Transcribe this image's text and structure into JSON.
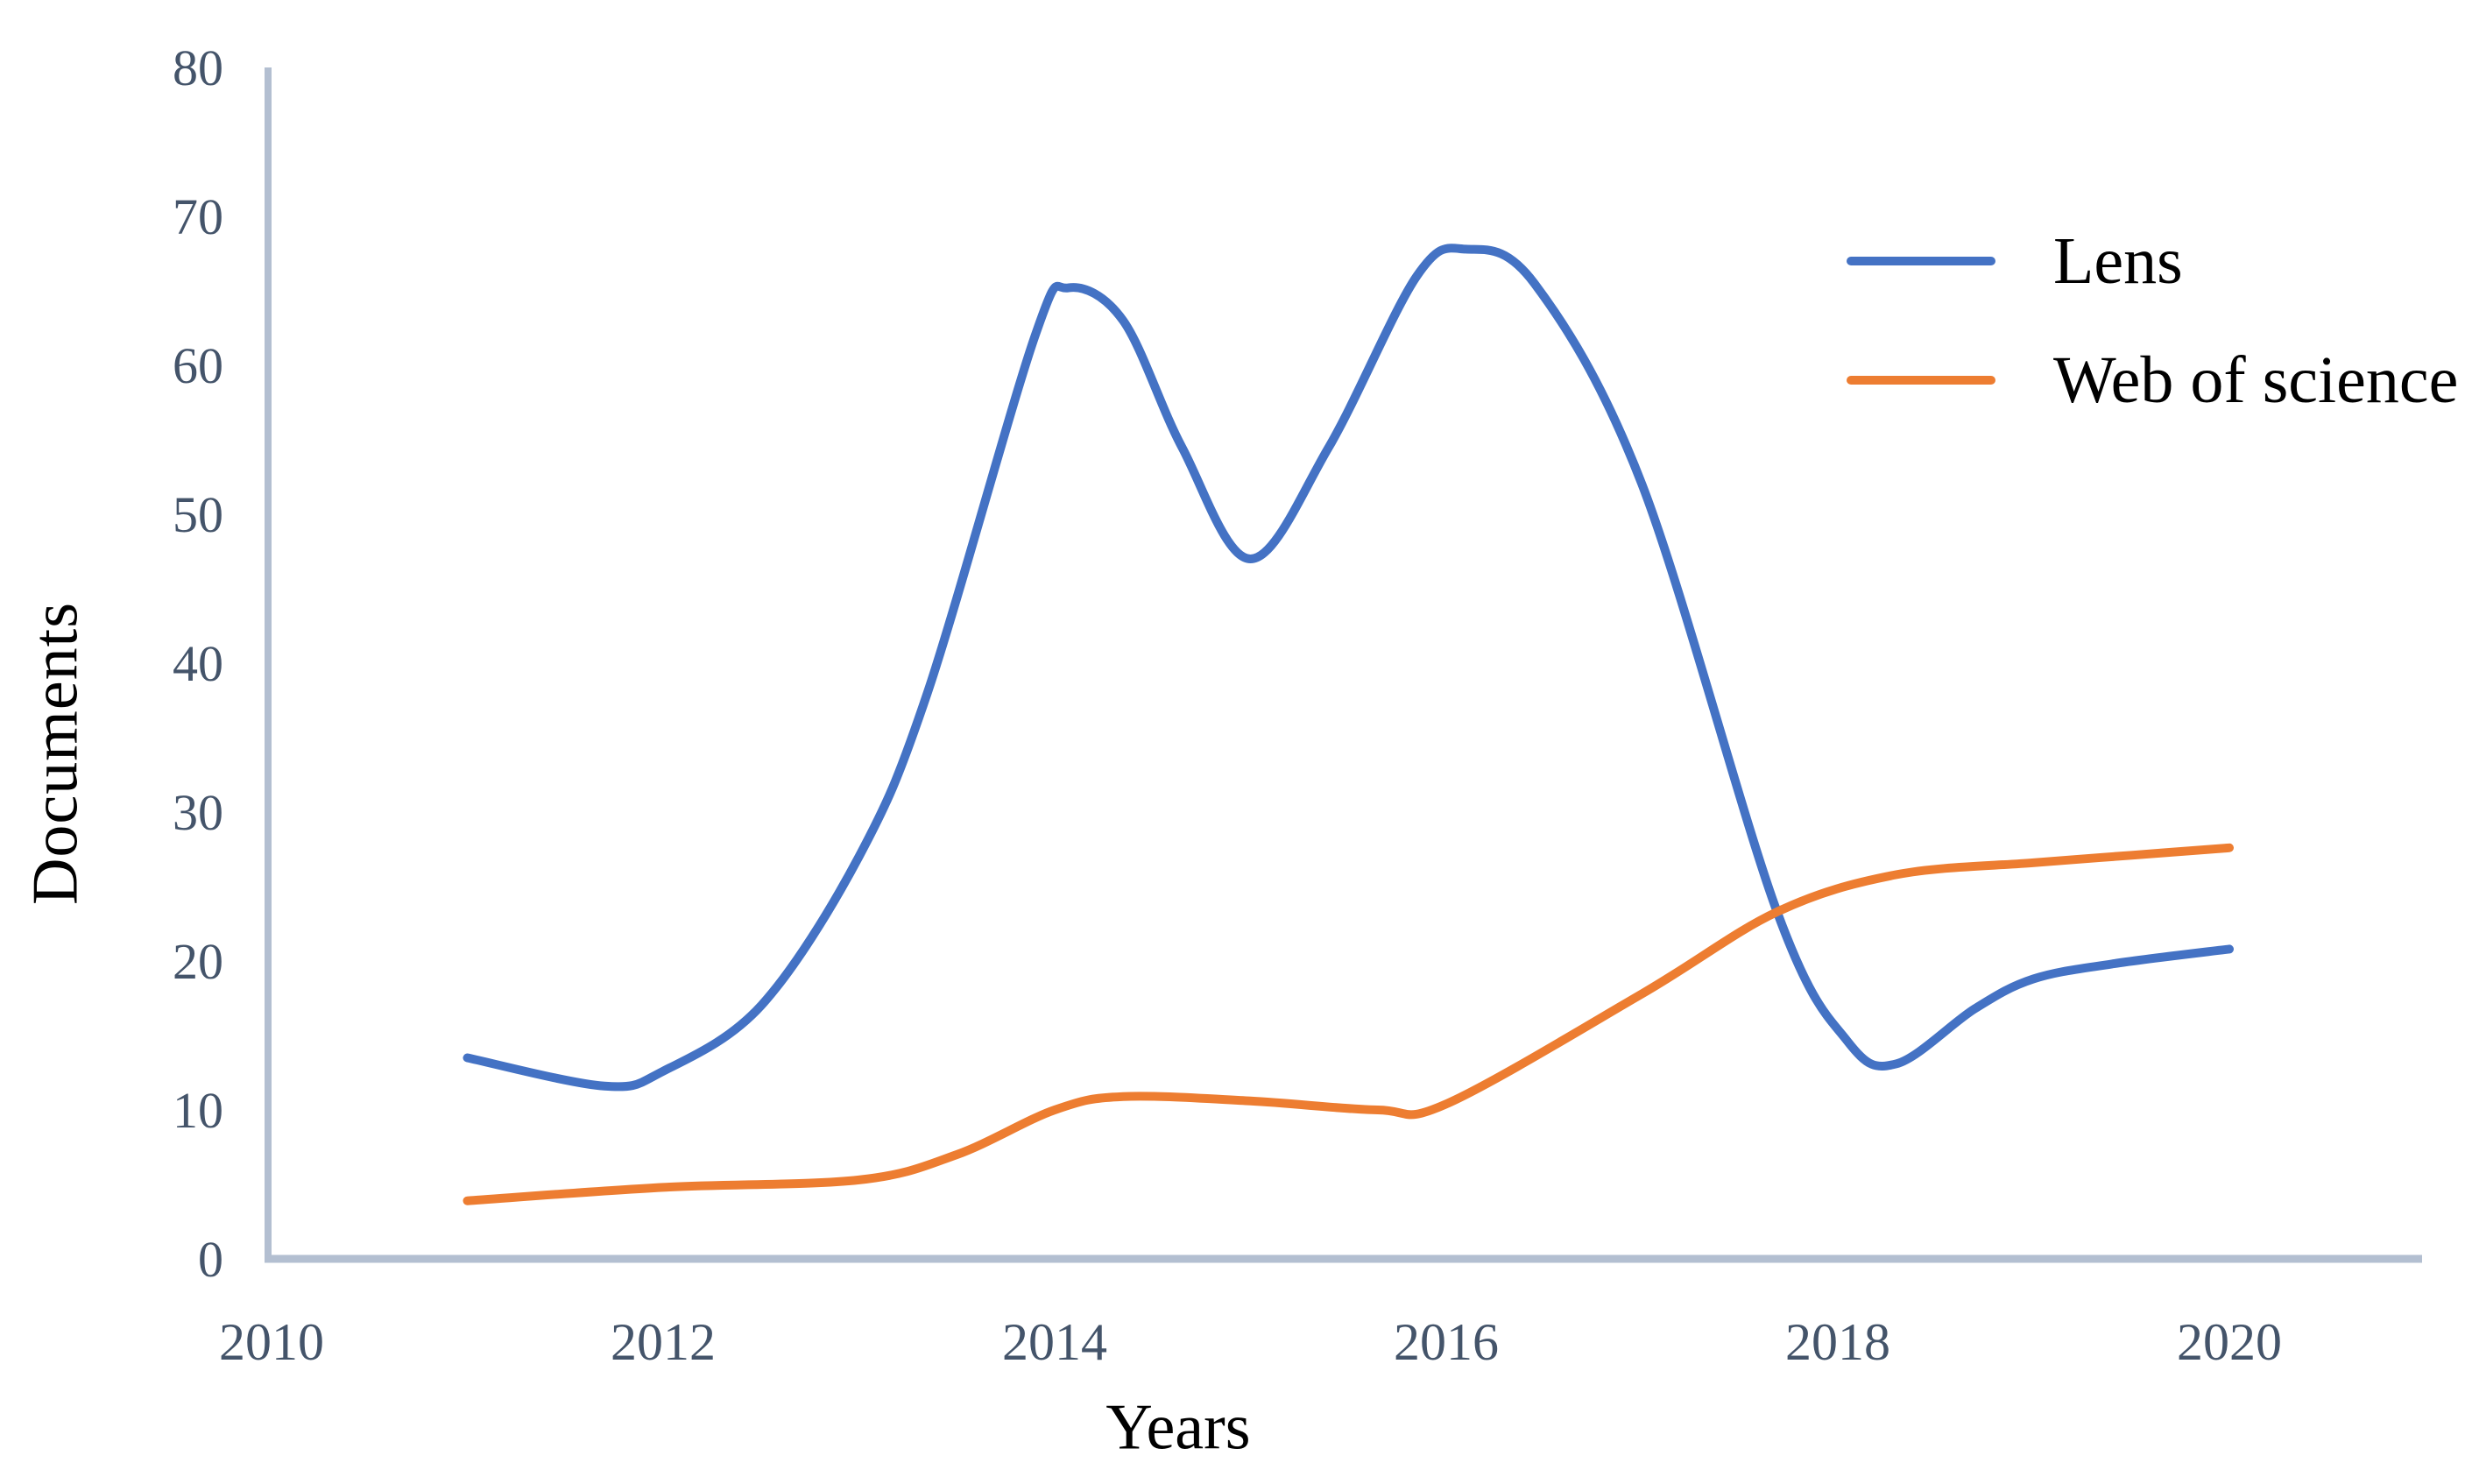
{
  "figure": {
    "background_color": "#ffffff",
    "axis_line_color": "#b3bfd1",
    "tick_label_color": "#44546a",
    "text_color": "#000000"
  },
  "axes": {
    "x": {
      "title": "Years",
      "tick_labels": [
        "2010",
        "2012",
        "2014",
        "2016",
        "2018",
        "2020"
      ],
      "tick_values": [
        2010,
        2012,
        2014,
        2016,
        2018,
        2020
      ]
    },
    "y": {
      "title": "Documents",
      "tick_labels": [
        "0",
        "10",
        "20",
        "30",
        "40",
        "50",
        "60",
        "70",
        "80"
      ],
      "tick_values": [
        0,
        10,
        20,
        30,
        40,
        50,
        60,
        70,
        80
      ]
    }
  },
  "legend": {
    "position": "top-right",
    "items": [
      {
        "label": "Lens",
        "color": "#4472c4"
      },
      {
        "label": "Web of science",
        "color": "#ed7d31"
      }
    ]
  },
  "chart_data": {
    "type": "line",
    "title": "",
    "xlabel": "Years",
    "ylabel": "Documents",
    "xlim": [
      2010,
      2021
    ],
    "ylim": [
      0,
      80
    ],
    "grid": false,
    "smooth": true,
    "x_years": [
      2011,
      2012,
      2013,
      2014,
      2015,
      2016,
      2017,
      2018,
      2019,
      2020
    ],
    "series": [
      {
        "name": "Lens",
        "color": "#4472c4",
        "values": [
          13.5,
          12.5,
          27,
          65,
          47,
          68,
          52,
          16,
          19,
          21
        ]
      },
      {
        "name": "Web of science",
        "color": "#ed7d31",
        "values": [
          4,
          5,
          5.5,
          10,
          10.5,
          10.5,
          18,
          25.5,
          26.5,
          27.5
        ]
      }
    ],
    "render_anchors": [
      {
        "name": "Lens",
        "points": [
          [
            2011.0,
            13.5
          ],
          [
            2011.7,
            11.6
          ],
          [
            2012.0,
            12.6
          ],
          [
            2012.5,
            17.0
          ],
          [
            2013.0,
            27.0
          ],
          [
            2013.35,
            38.0
          ],
          [
            2013.9,
            62.0
          ],
          [
            2014.07,
            65.2
          ],
          [
            2014.35,
            63.0
          ],
          [
            2014.65,
            54.5
          ],
          [
            2015.0,
            47.0
          ],
          [
            2015.4,
            54.5
          ],
          [
            2015.85,
            66.0
          ],
          [
            2016.1,
            67.8
          ],
          [
            2016.45,
            65.5
          ],
          [
            2017.0,
            52.0
          ],
          [
            2017.69,
            23.3
          ],
          [
            2018.05,
            14.6
          ],
          [
            2018.3,
            13.1
          ],
          [
            2018.7,
            16.8
          ],
          [
            2019.0,
            18.8
          ],
          [
            2019.4,
            19.8
          ],
          [
            2020.0,
            20.8
          ]
        ]
      },
      {
        "name": "Web of science",
        "points": [
          [
            2011.0,
            3.9
          ],
          [
            2012.0,
            4.8
          ],
          [
            2013.0,
            5.3
          ],
          [
            2013.5,
            7.0
          ],
          [
            2014.0,
            10.0
          ],
          [
            2014.35,
            10.9
          ],
          [
            2015.0,
            10.6
          ],
          [
            2015.65,
            10.0
          ],
          [
            2016.0,
            10.4
          ],
          [
            2017.0,
            17.8
          ],
          [
            2017.69,
            23.3
          ],
          [
            2018.3,
            25.8
          ],
          [
            2019.0,
            26.6
          ],
          [
            2019.5,
            27.1
          ],
          [
            2020.0,
            27.6
          ]
        ]
      }
    ]
  }
}
